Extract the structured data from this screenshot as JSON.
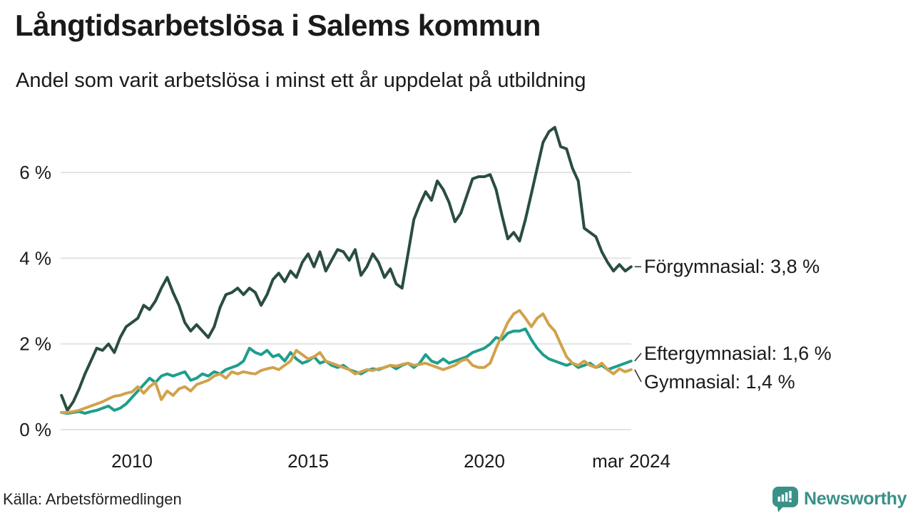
{
  "chart_data": {
    "type": "line",
    "title": "Långtidsarbetslösa i Salems kommun",
    "subtitle": "Andel som varit arbetslösa i minst ett år uppdelat på utbildning",
    "unit": "%",
    "grid": "horizontal",
    "ylim": [
      0,
      7.3
    ],
    "x_start_year": 2008,
    "x_step_months": 2,
    "x_ticks": [
      {
        "label": "2010",
        "year": 2010
      },
      {
        "label": "2015",
        "year": 2015
      },
      {
        "label": "2020",
        "year": 2020
      },
      {
        "label": "mar 2024",
        "year": 2024.17
      }
    ],
    "y_ticks": [
      {
        "label": "0 %",
        "value": 0
      },
      {
        "label": "2 %",
        "value": 2
      },
      {
        "label": "4 %",
        "value": 4
      },
      {
        "label": "6 %",
        "value": 6
      }
    ],
    "series": [
      {
        "name": "Förgymnasial",
        "color": "#2a4d41",
        "end_label": "Förgymnasial: 3,8 %",
        "latest_value": "3,8 %",
        "values": [
          0.8,
          0.45,
          0.65,
          0.95,
          1.3,
          1.6,
          1.9,
          1.85,
          2.0,
          1.8,
          2.15,
          2.4,
          2.5,
          2.6,
          2.9,
          2.8,
          3.0,
          3.3,
          3.55,
          3.2,
          2.9,
          2.5,
          2.3,
          2.45,
          2.3,
          2.15,
          2.4,
          2.85,
          3.15,
          3.2,
          3.3,
          3.15,
          3.3,
          3.2,
          2.9,
          3.15,
          3.5,
          3.65,
          3.45,
          3.7,
          3.55,
          3.9,
          4.1,
          3.8,
          4.15,
          3.7,
          3.95,
          4.2,
          4.15,
          3.95,
          4.2,
          3.6,
          3.8,
          4.1,
          3.9,
          3.55,
          3.75,
          3.4,
          3.3,
          4.1,
          4.9,
          5.25,
          5.55,
          5.35,
          5.8,
          5.6,
          5.3,
          4.85,
          5.05,
          5.45,
          5.85,
          5.9,
          5.9,
          5.95,
          5.6,
          5.0,
          4.45,
          4.6,
          4.4,
          4.9,
          5.5,
          6.1,
          6.7,
          6.95,
          7.05,
          6.6,
          6.55,
          6.1,
          5.8,
          4.7,
          4.6,
          4.5,
          4.15,
          3.9,
          3.7,
          3.85,
          3.7,
          3.8
        ]
      },
      {
        "name": "Eftergymnasial",
        "color": "#1d9e8c",
        "end_label": "Eftergymnasial: 1,6 %",
        "latest_value": "1,6 %",
        "values": [
          0.4,
          0.38,
          0.4,
          0.42,
          0.38,
          0.42,
          0.45,
          0.5,
          0.55,
          0.45,
          0.5,
          0.6,
          0.75,
          0.9,
          1.05,
          1.2,
          1.1,
          1.25,
          1.3,
          1.25,
          1.3,
          1.35,
          1.15,
          1.2,
          1.3,
          1.25,
          1.35,
          1.3,
          1.4,
          1.45,
          1.5,
          1.6,
          1.9,
          1.8,
          1.75,
          1.85,
          1.7,
          1.75,
          1.6,
          1.8,
          1.65,
          1.55,
          1.6,
          1.7,
          1.55,
          1.6,
          1.5,
          1.45,
          1.5,
          1.4,
          1.35,
          1.3,
          1.38,
          1.42,
          1.4,
          1.45,
          1.5,
          1.42,
          1.5,
          1.55,
          1.45,
          1.55,
          1.75,
          1.6,
          1.55,
          1.65,
          1.55,
          1.6,
          1.65,
          1.7,
          1.8,
          1.85,
          1.9,
          2.0,
          2.15,
          2.1,
          2.25,
          2.3,
          2.3,
          2.35,
          2.1,
          1.9,
          1.75,
          1.65,
          1.6,
          1.55,
          1.5,
          1.55,
          1.45,
          1.5,
          1.55,
          1.45,
          1.5,
          1.4,
          1.45,
          1.5,
          1.55,
          1.6
        ]
      },
      {
        "name": "Gymnasial",
        "color": "#d0a24c",
        "end_label": "Gymnasial: 1,4 %",
        "latest_value": "1,4 %",
        "values": [
          0.4,
          0.4,
          0.42,
          0.45,
          0.5,
          0.55,
          0.6,
          0.65,
          0.72,
          0.78,
          0.8,
          0.85,
          0.88,
          1.0,
          0.85,
          1.0,
          1.1,
          0.7,
          0.9,
          0.8,
          0.95,
          1.0,
          0.9,
          1.05,
          1.1,
          1.15,
          1.25,
          1.3,
          1.2,
          1.35,
          1.3,
          1.35,
          1.32,
          1.3,
          1.38,
          1.42,
          1.45,
          1.4,
          1.5,
          1.6,
          1.85,
          1.75,
          1.65,
          1.7,
          1.8,
          1.6,
          1.55,
          1.5,
          1.45,
          1.4,
          1.3,
          1.35,
          1.4,
          1.38,
          1.42,
          1.45,
          1.5,
          1.48,
          1.52,
          1.55,
          1.5,
          1.52,
          1.55,
          1.5,
          1.45,
          1.4,
          1.45,
          1.5,
          1.6,
          1.65,
          1.5,
          1.45,
          1.45,
          1.55,
          1.9,
          2.2,
          2.5,
          2.7,
          2.78,
          2.6,
          2.4,
          2.6,
          2.7,
          2.45,
          2.3,
          2.0,
          1.7,
          1.55,
          1.5,
          1.6,
          1.5,
          1.45,
          1.55,
          1.4,
          1.3,
          1.42,
          1.35,
          1.4
        ]
      }
    ]
  },
  "footer": {
    "source": "Källa: Arbetsförmedlingen",
    "brand": "Newsworthy"
  },
  "colors": {
    "gridline": "#e3e3e3",
    "connector": "#333333",
    "brand_teal": "#3a9188"
  }
}
